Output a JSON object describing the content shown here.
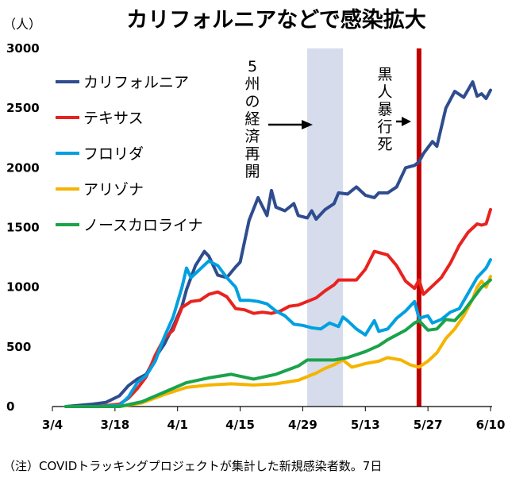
{
  "chart_data": {
    "type": "line",
    "title": "カリフォルニアなどで感染拡大",
    "ylabel": "（人）",
    "ylim": [
      0,
      3000
    ],
    "yticks": [
      0,
      500,
      1000,
      1500,
      2000,
      2500,
      3000
    ],
    "x_tick_labels": [
      "3/4",
      "3/18",
      "4/1",
      "4/15",
      "4/29",
      "5/13",
      "5/27",
      "6/10"
    ],
    "x_tick_days": [
      0,
      14,
      28,
      42,
      56,
      70,
      84,
      98
    ],
    "x_domain": [
      0,
      98
    ],
    "x_note": "day index: 0 = 3/4, 98 = 6/10",
    "note": "（注）COVIDトラッキングプロジェクトが集計した新規感染者数。7日",
    "reopening_band": {
      "from": 57,
      "to": 65,
      "label": "5州の経済再開",
      "color": "#d6dcec"
    },
    "death_line": {
      "x": 82,
      "label": "黒人暴行死",
      "color": "#c00000"
    },
    "series": [
      {
        "name": "カリフォルニア",
        "color": "#2f4c8f",
        "x": [
          3,
          6,
          9,
          12,
          15,
          17,
          19,
          21,
          23,
          25,
          27,
          29,
          30,
          32,
          34,
          35,
          37,
          39,
          41,
          42,
          44,
          46,
          48,
          49,
          50,
          52,
          54,
          55,
          57,
          58,
          59,
          61,
          63,
          64,
          66,
          68,
          70,
          72,
          73,
          75,
          77,
          79,
          81,
          82,
          83,
          85,
          86,
          88,
          90,
          92,
          94,
          95,
          96,
          97,
          98
        ],
        "values": [
          0,
          10,
          20,
          35,
          90,
          175,
          230,
          270,
          410,
          520,
          670,
          840,
          980,
          1180,
          1300,
          1260,
          1100,
          1080,
          1170,
          1210,
          1560,
          1750,
          1600,
          1810,
          1670,
          1640,
          1700,
          1600,
          1580,
          1640,
          1570,
          1650,
          1700,
          1790,
          1780,
          1840,
          1770,
          1750,
          1790,
          1790,
          1840,
          2000,
          2020,
          2050,
          2120,
          2220,
          2180,
          2500,
          2640,
          2590,
          2720,
          2600,
          2620,
          2580,
          2650
        ]
      },
      {
        "name": "テキサス",
        "color": "#e8231f",
        "x": [
          3,
          10,
          15,
          17,
          19,
          21,
          23,
          25,
          27,
          29,
          31,
          33,
          35,
          37,
          39,
          41,
          43,
          45,
          47,
          49,
          51,
          53,
          55,
          57,
          59,
          61,
          63,
          64,
          66,
          68,
          70,
          72,
          73,
          75,
          77,
          79,
          81,
          82,
          83,
          85,
          87,
          89,
          91,
          93,
          95,
          96,
          97,
          98
        ],
        "values": [
          0,
          0,
          20,
          70,
          150,
          250,
          430,
          570,
          640,
          830,
          880,
          890,
          940,
          960,
          920,
          820,
          810,
          780,
          790,
          780,
          800,
          840,
          850,
          880,
          910,
          970,
          1020,
          1060,
          1060,
          1060,
          1150,
          1300,
          1290,
          1270,
          1180,
          1050,
          990,
          1060,
          940,
          1010,
          1080,
          1200,
          1350,
          1460,
          1530,
          1520,
          1530,
          1650
        ]
      },
      {
        "name": "フロリダ",
        "color": "#00a0e0",
        "x": [
          3,
          10,
          15,
          17,
          19,
          21,
          23,
          25,
          27,
          29,
          30,
          31,
          33,
          35,
          37,
          39,
          41,
          42,
          44,
          46,
          48,
          50,
          52,
          54,
          56,
          58,
          60,
          62,
          64,
          65,
          66,
          68,
          70,
          72,
          73,
          75,
          77,
          79,
          81,
          82,
          84,
          85,
          87,
          89,
          91,
          93,
          95,
          97,
          98
        ],
        "values": [
          0,
          0,
          10,
          80,
          200,
          260,
          380,
          580,
          750,
          1000,
          1160,
          1080,
          1150,
          1220,
          1180,
          1080,
          1000,
          890,
          890,
          880,
          860,
          800,
          760,
          690,
          680,
          660,
          650,
          700,
          670,
          750,
          720,
          650,
          600,
          720,
          630,
          650,
          740,
          800,
          880,
          740,
          760,
          700,
          730,
          790,
          820,
          950,
          1080,
          1160,
          1230
        ]
      },
      {
        "name": "アリゾナ",
        "color": "#f5b400",
        "x": [
          3,
          15,
          20,
          25,
          30,
          35,
          40,
          45,
          50,
          55,
          57,
          59,
          61,
          63,
          65,
          67,
          70,
          73,
          75,
          78,
          80,
          82,
          84,
          86,
          88,
          90,
          92,
          94,
          95,
          96,
          97,
          98
        ],
        "values": [
          0,
          0,
          30,
          100,
          160,
          180,
          190,
          180,
          190,
          220,
          250,
          280,
          320,
          350,
          390,
          330,
          360,
          380,
          410,
          390,
          350,
          330,
          380,
          450,
          570,
          650,
          760,
          900,
          1000,
          1050,
          1000,
          1090
        ]
      },
      {
        "name": "ノースカロライナ",
        "color": "#1aa34a",
        "x": [
          3,
          15,
          20,
          25,
          30,
          35,
          40,
          45,
          50,
          55,
          57,
          60,
          63,
          66,
          70,
          73,
          75,
          77,
          79,
          81,
          82,
          84,
          86,
          88,
          90,
          92,
          94,
          96,
          98
        ],
        "values": [
          0,
          0,
          40,
          120,
          200,
          240,
          270,
          230,
          270,
          340,
          390,
          390,
          390,
          410,
          460,
          510,
          560,
          600,
          640,
          700,
          720,
          640,
          650,
          730,
          720,
          800,
          900,
          1000,
          1060
        ]
      }
    ]
  }
}
